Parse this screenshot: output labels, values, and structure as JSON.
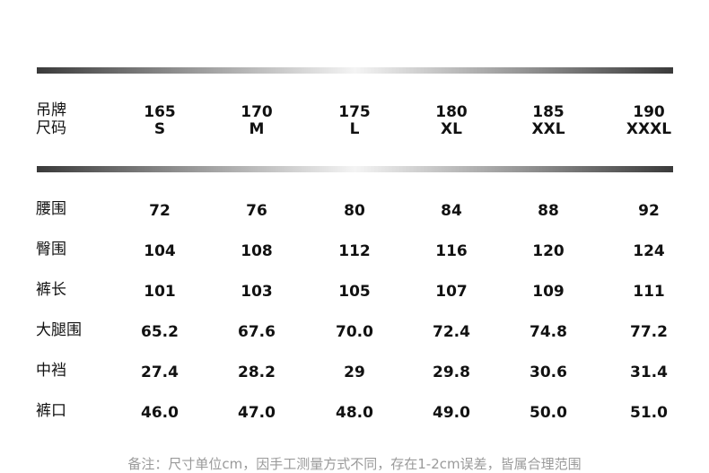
{
  "header": {
    "label": [
      "吊牌",
      "尺码"
    ],
    "sizes": [
      {
        "height": "165",
        "size": "S"
      },
      {
        "height": "170",
        "size": "M"
      },
      {
        "height": "175",
        "size": "L"
      },
      {
        "height": "180",
        "size": "XL"
      },
      {
        "height": "185",
        "size": "XXL"
      },
      {
        "height": "190",
        "size": "XXXL"
      }
    ]
  },
  "table": {
    "rows": [
      {
        "label": "腰围",
        "values": [
          "72",
          "76",
          "80",
          "84",
          "88",
          "92"
        ]
      },
      {
        "label": "臀围",
        "values": [
          "104",
          "108",
          "112",
          "116",
          "120",
          "124"
        ]
      },
      {
        "label": "裤长",
        "values": [
          "101",
          "103",
          "105",
          "107",
          "109",
          "111"
        ]
      },
      {
        "label": "大腿围",
        "values": [
          "65.2",
          "67.6",
          "70.0",
          "72.4",
          "74.8",
          "77.2"
        ]
      },
      {
        "label": "中裆",
        "values": [
          "27.4",
          "28.2",
          "29",
          "29.8",
          "30.6",
          "31.4"
        ]
      },
      {
        "label": "裤口",
        "values": [
          "46.0",
          "47.0",
          "48.0",
          "49.0",
          "50.0",
          "51.0"
        ]
      }
    ]
  },
  "footnote": "备注：尺寸单位cm，因手工测量方式不同，存在1-2cm误差，皆属合理范围"
}
